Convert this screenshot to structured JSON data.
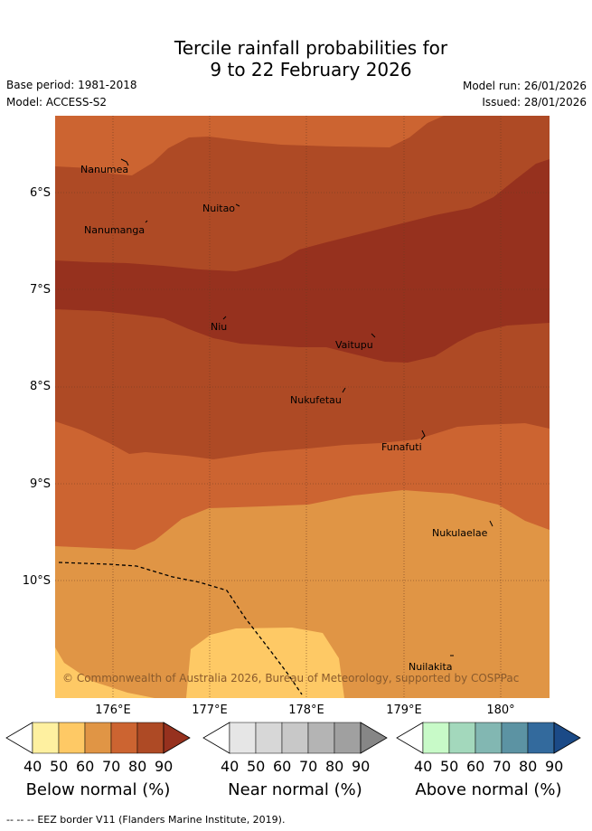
{
  "title": {
    "line1": "Tercile rainfall probabilities for",
    "line2": "9 to 22 February 2026"
  },
  "meta": {
    "base_period": "Base period: 1981-2018",
    "model": "Model: ACCESS-S2",
    "model_run": "Model run: 26/01/2026",
    "issued": "Issued: 28/01/2026"
  },
  "map": {
    "lat_ticks": [
      "6°S",
      "7°S",
      "8°S",
      "9°S",
      "10°S"
    ],
    "lon_ticks": [
      "176°E",
      "177°E",
      "178°E",
      "179°E",
      "180°"
    ],
    "places": [
      {
        "name": "Nanumea"
      },
      {
        "name": "Nuitao"
      },
      {
        "name": "Nanumanga"
      },
      {
        "name": "Niu"
      },
      {
        "name": "Vaitupu"
      },
      {
        "name": "Nukufetau"
      },
      {
        "name": "Funafuti"
      },
      {
        "name": "Nukulaelae"
      },
      {
        "name": "Nuilakita"
      }
    ],
    "copyright": "© Commonwealth of Australia 2026, Bureau of Meteorology, supported by COSPPac",
    "colors": {
      "below_60": "#e09545",
      "below_50": "#fec965",
      "below_70": "#cc6431",
      "below_80": "#ae4a25",
      "below_90": "#96311e"
    }
  },
  "colorbars": [
    {
      "label": "Below normal (%)",
      "ticks": [
        "40",
        "50",
        "60",
        "70",
        "80",
        "90"
      ],
      "colors": [
        "#ffffff",
        "#fef0a0",
        "#fec965",
        "#e09545",
        "#cc6431",
        "#ae4a25",
        "#96311e"
      ]
    },
    {
      "label": "Near normal (%)",
      "ticks": [
        "40",
        "50",
        "60",
        "70",
        "80",
        "90"
      ],
      "colors": [
        "#ffffff",
        "#e6e6e6",
        "#d7d7d7",
        "#c8c8c8",
        "#b4b4b4",
        "#a0a0a0",
        "#868686"
      ]
    },
    {
      "label": "Above normal (%)",
      "ticks": [
        "40",
        "50",
        "60",
        "70",
        "80",
        "90"
      ],
      "colors": [
        "#ffffff",
        "#c8fac8",
        "#a3d8bc",
        "#82b7b2",
        "#5c93a3",
        "#336a9d",
        "#1b4a87"
      ]
    }
  ],
  "legend": {
    "eez_symbol": "-- -- --",
    "eez": "EEZ border V11 (Flanders Marine Institute, 2019)."
  }
}
